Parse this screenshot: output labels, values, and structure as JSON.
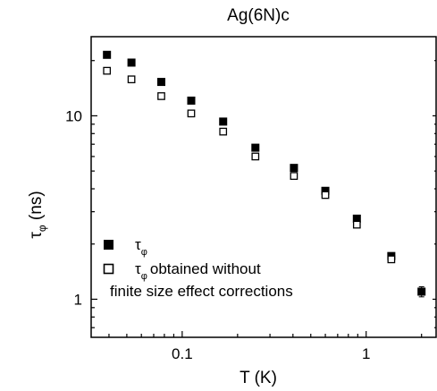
{
  "chart_data": {
    "type": "scatter",
    "title": "Ag(6N)c",
    "xlabel": "T (K)",
    "ylabel": {
      "base": "τ",
      "sub": "φ",
      "unit": " (ns)"
    },
    "xscale": "log",
    "yscale": "log",
    "xlim": [
      0.032,
      2.4
    ],
    "ylim": [
      0.62,
      27
    ],
    "x_ticks": [
      {
        "value": 0.1,
        "label": "0.1"
      },
      {
        "value": 1,
        "label": "1"
      }
    ],
    "y_ticks": [
      {
        "value": 1,
        "label": "1"
      },
      {
        "value": 10,
        "label": "10"
      }
    ],
    "grid": false,
    "legend_position": "bottom-left",
    "series": [
      {
        "legend": {
          "base": "τ",
          "sub": "φ",
          "line2": ""
        },
        "marker": "filled-square",
        "color": "#000000",
        "points": [
          {
            "x": 0.039,
            "y": 21.5
          },
          {
            "x": 0.053,
            "y": 19.5
          },
          {
            "x": 0.077,
            "y": 15.3
          },
          {
            "x": 0.112,
            "y": 12.1
          },
          {
            "x": 0.167,
            "y": 9.3
          },
          {
            "x": 0.25,
            "y": 6.7
          },
          {
            "x": 0.405,
            "y": 5.2
          },
          {
            "x": 0.6,
            "y": 3.9
          },
          {
            "x": 0.89,
            "y": 2.75
          },
          {
            "x": 1.37,
            "y": 1.72
          },
          {
            "x": 2.0,
            "y": 1.1
          }
        ],
        "errors": [
          0,
          0,
          0,
          0,
          0,
          0,
          0,
          0,
          0.08,
          0.07,
          0.07
        ]
      },
      {
        "legend": {
          "base": "τ",
          "sub": "φ",
          "line1": "obtained without",
          "line2": "finite size effect corrections"
        },
        "marker": "open-square",
        "color": "#000000",
        "points": [
          {
            "x": 0.039,
            "y": 17.6
          },
          {
            "x": 0.053,
            "y": 15.8
          },
          {
            "x": 0.077,
            "y": 12.8
          },
          {
            "x": 0.112,
            "y": 10.3
          },
          {
            "x": 0.167,
            "y": 8.2
          },
          {
            "x": 0.25,
            "y": 6.0
          },
          {
            "x": 0.405,
            "y": 4.7
          },
          {
            "x": 0.6,
            "y": 3.7
          },
          {
            "x": 0.89,
            "y": 2.55
          },
          {
            "x": 1.37,
            "y": 1.65
          }
        ]
      }
    ]
  }
}
